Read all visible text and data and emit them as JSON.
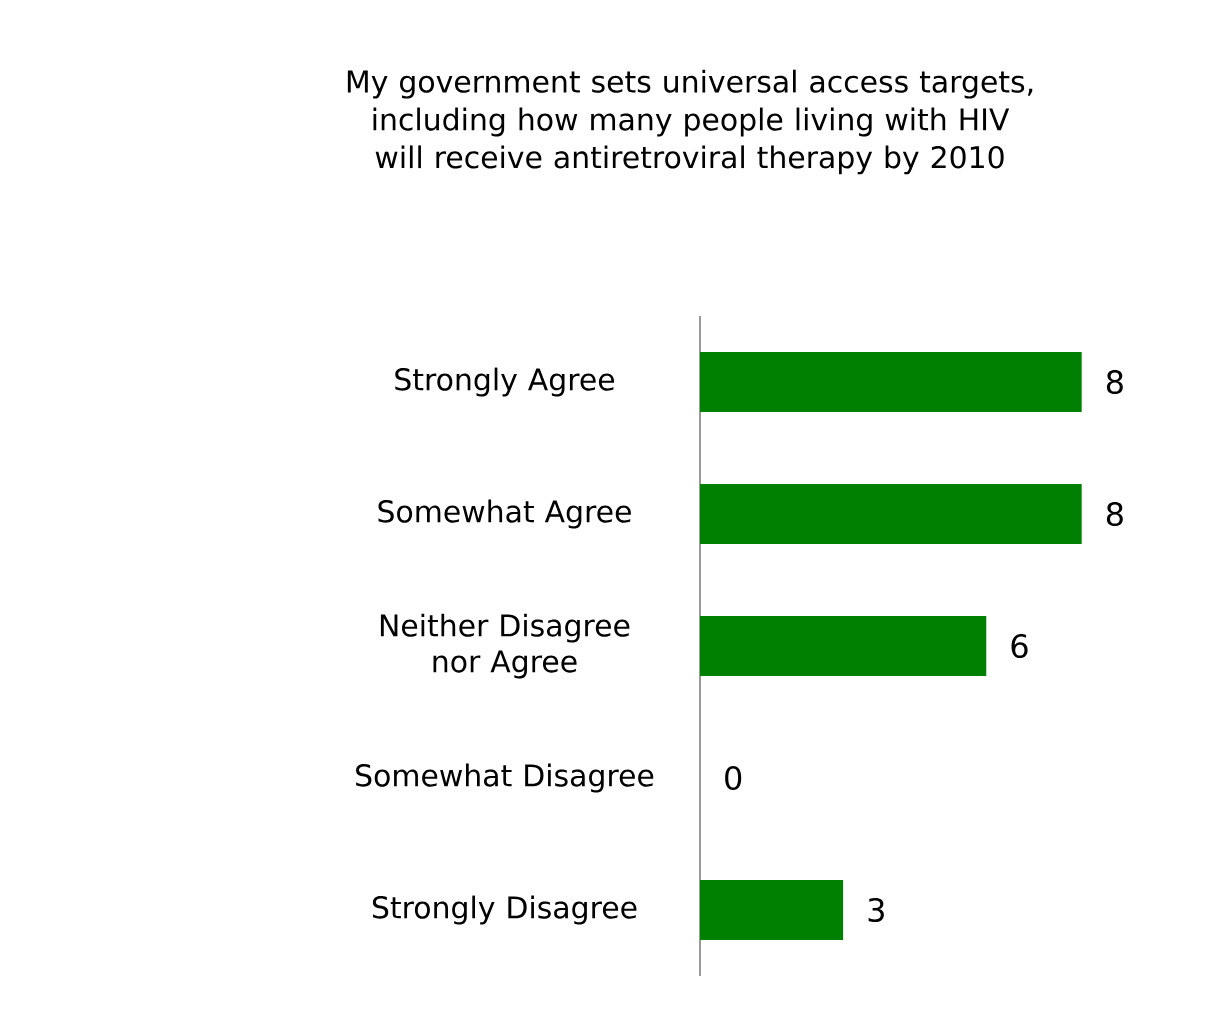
{
  "chart_data": {
    "type": "bar",
    "orientation": "horizontal",
    "title": "My government sets universal access targets, including how many people living with HIV will receive antiretroviral therapy by 2010",
    "categories": [
      "Strongly Agree",
      "Somewhat Agree",
      "Neither  Disagree nor Agree",
      "Somewhat Disagree",
      "Strongly Disagree"
    ],
    "values": [
      8,
      8,
      6,
      0,
      3
    ],
    "color": "#008000",
    "data_labels": true,
    "tick_labels": "y"
  }
}
